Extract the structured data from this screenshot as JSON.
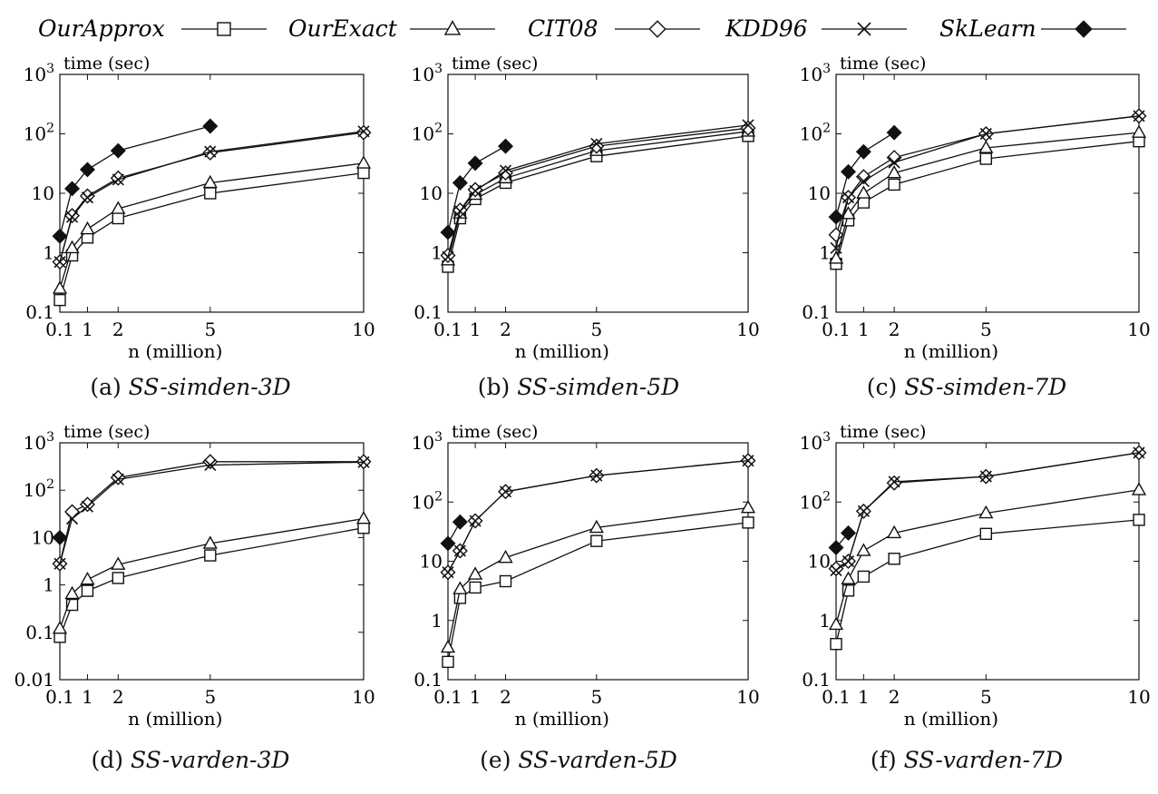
{
  "legend": [
    {
      "name": "OurApprox",
      "marker": "square"
    },
    {
      "name": "OurExact",
      "marker": "triangle"
    },
    {
      "name": "CIT08",
      "marker": "diamond"
    },
    {
      "name": "KDD96",
      "marker": "cross"
    },
    {
      "name": "SkLearn",
      "marker": "filled-diamond"
    }
  ],
  "chart_data": [
    {
      "type": "line",
      "caption_prefix": "(a)",
      "caption_name": "SS-simden-3D",
      "xlabel": "n (million)",
      "ylabel": "time (sec)",
      "xlim": [
        0.1,
        10
      ],
      "ylim": [
        0.1,
        1000
      ],
      "yscale": "log",
      "xticks": [
        "0.1",
        "1",
        "2",
        "5",
        "10"
      ],
      "yticks": [
        "0.1",
        "1",
        "10",
        "10^2",
        "10^3"
      ],
      "series": [
        {
          "name": "OurApprox",
          "x": [
            0.1,
            0.5,
            1,
            2,
            5,
            10
          ],
          "y": [
            0.16,
            0.9,
            1.8,
            3.8,
            10,
            22
          ]
        },
        {
          "name": "OurExact",
          "x": [
            0.1,
            0.5,
            1,
            2,
            5,
            10
          ],
          "y": [
            0.25,
            1.2,
            2.5,
            5.5,
            15,
            32
          ]
        },
        {
          "name": "CIT08",
          "x": [
            0.1,
            0.5,
            1,
            2,
            5,
            10
          ],
          "y": [
            0.7,
            4.2,
            9,
            18,
            48,
            105
          ]
        },
        {
          "name": "KDD96",
          "x": [
            0.1,
            0.5,
            1,
            2,
            5,
            10
          ],
          "y": [
            0.7,
            4,
            8.5,
            17,
            50,
            110
          ]
        },
        {
          "name": "SkLearn",
          "x": [
            0.1,
            0.5,
            1,
            2,
            5
          ],
          "y": [
            1.9,
            12,
            25,
            52,
            135
          ]
        }
      ]
    },
    {
      "type": "line",
      "caption_prefix": "(b)",
      "caption_name": "SS-simden-5D",
      "xlabel": "n (million)",
      "ylabel": "time (sec)",
      "xlim": [
        0.1,
        10
      ],
      "ylim": [
        0.1,
        1000
      ],
      "yscale": "log",
      "xticks": [
        "0.1",
        "1",
        "2",
        "5",
        "10"
      ],
      "yticks": [
        "0.1",
        "1",
        "10",
        "10^2",
        "10^3"
      ],
      "series": [
        {
          "name": "OurApprox",
          "x": [
            0.1,
            0.5,
            1,
            2,
            5,
            10
          ],
          "y": [
            0.58,
            3.8,
            8,
            15,
            42,
            92
          ]
        },
        {
          "name": "OurExact",
          "x": [
            0.1,
            0.5,
            1,
            2,
            5,
            10
          ],
          "y": [
            0.75,
            4.6,
            9.5,
            18,
            52,
            110
          ]
        },
        {
          "name": "CIT08",
          "x": [
            0.1,
            0.5,
            1,
            2,
            5,
            10
          ],
          "y": [
            0.9,
            5.2,
            11.5,
            22,
            62,
            125
          ]
        },
        {
          "name": "KDD96",
          "x": [
            0.1,
            0.5,
            1,
            2,
            5,
            10
          ],
          "y": [
            0.85,
            5,
            11,
            24,
            68,
            140
          ]
        },
        {
          "name": "SkLearn",
          "x": [
            0.1,
            0.5,
            1,
            2
          ],
          "y": [
            2.2,
            15,
            32,
            62
          ]
        }
      ]
    },
    {
      "type": "line",
      "caption_prefix": "(c)",
      "caption_name": "SS-simden-7D",
      "xlabel": "n (million)",
      "ylabel": "time (sec)",
      "xlim": [
        0.1,
        10
      ],
      "ylim": [
        0.1,
        1000
      ],
      "yscale": "log",
      "xticks": [
        "0.1",
        "1",
        "2",
        "5",
        "10"
      ],
      "yticks": [
        "0.1",
        "1",
        "10",
        "10^2",
        "10^3"
      ],
      "series": [
        {
          "name": "OurApprox",
          "x": [
            0.1,
            0.5,
            1,
            2,
            5,
            10
          ],
          "y": [
            0.65,
            3.5,
            7,
            14,
            38,
            75
          ]
        },
        {
          "name": "OurExact",
          "x": [
            0.1,
            0.5,
            1,
            2,
            5,
            10
          ],
          "y": [
            0.8,
            4.5,
            10,
            22,
            58,
            105
          ]
        },
        {
          "name": "CIT08",
          "x": [
            0.1,
            0.5,
            1,
            2,
            5,
            10
          ],
          "y": [
            2,
            8.5,
            19,
            40,
            100,
            200
          ]
        },
        {
          "name": "KDD96",
          "x": [
            0.1,
            0.5,
            1,
            2,
            5,
            10
          ],
          "y": [
            1.2,
            8.5,
            16,
            33,
            100,
            200
          ]
        },
        {
          "name": "SkLearn",
          "x": [
            0.1,
            0.5,
            1,
            2
          ],
          "y": [
            4,
            23,
            50,
            105
          ]
        }
      ]
    },
    {
      "type": "line",
      "caption_prefix": "(d)",
      "caption_name": "SS-varden-3D",
      "xlabel": "n (million)",
      "ylabel": "time (sec)",
      "xlim": [
        0.1,
        10
      ],
      "ylim": [
        0.01,
        1000
      ],
      "yscale": "log",
      "xticks": [
        "0.1",
        "1",
        "2",
        "5",
        "10"
      ],
      "yticks": [
        "0.01",
        "0.1",
        "1",
        "10",
        "10^2",
        "10^3"
      ],
      "series": [
        {
          "name": "OurApprox",
          "x": [
            0.1,
            0.5,
            1,
            2,
            5,
            10
          ],
          "y": [
            0.08,
            0.38,
            0.75,
            1.4,
            4.2,
            16
          ]
        },
        {
          "name": "OurExact",
          "x": [
            0.1,
            0.5,
            1,
            2,
            5,
            10
          ],
          "y": [
            0.12,
            0.65,
            1.3,
            2.7,
            7.5,
            25
          ]
        },
        {
          "name": "CIT08",
          "x": [
            0.1,
            0.5,
            1,
            2,
            5,
            10
          ],
          "y": [
            2.8,
            35,
            50,
            185,
            400,
            400
          ]
        },
        {
          "name": "KDD96",
          "x": [
            0.1,
            0.5,
            1,
            2,
            5,
            10
          ],
          "y": [
            2.8,
            25,
            45,
            170,
            340,
            390
          ]
        },
        {
          "name": "SkLearn",
          "x": [
            0.1
          ],
          "y": [
            10
          ]
        }
      ]
    },
    {
      "type": "line",
      "caption_prefix": "(e)",
      "caption_name": "SS-varden-5D",
      "xlabel": "n (million)",
      "ylabel": "time (sec)",
      "xlim": [
        0.1,
        10
      ],
      "ylim": [
        0.1,
        1000
      ],
      "yscale": "log",
      "xticks": [
        "0.1",
        "1",
        "2",
        "5",
        "10"
      ],
      "yticks": [
        "0.1",
        "1",
        "10",
        "10^2",
        "10^3"
      ],
      "series": [
        {
          "name": "OurApprox",
          "x": [
            0.1,
            0.5,
            1,
            2,
            5,
            10
          ],
          "y": [
            0.2,
            2.4,
            3.6,
            4.6,
            22,
            45
          ]
        },
        {
          "name": "OurExact",
          "x": [
            0.1,
            0.5,
            1,
            2,
            5,
            10
          ],
          "y": [
            0.35,
            3.4,
            6,
            11.5,
            37,
            80
          ]
        },
        {
          "name": "CIT08",
          "x": [
            0.1,
            0.5,
            1,
            2,
            5,
            10
          ],
          "y": [
            6.5,
            15,
            48,
            150,
            280,
            500
          ]
        },
        {
          "name": "KDD96",
          "x": [
            0.1,
            0.5,
            1,
            2,
            5,
            10
          ],
          "y": [
            6.5,
            15,
            48,
            150,
            280,
            500
          ]
        },
        {
          "name": "SkLearn",
          "x": [
            0.1,
            0.5
          ],
          "y": [
            20,
            46
          ]
        }
      ]
    },
    {
      "type": "line",
      "caption_prefix": "(f)",
      "caption_name": "SS-varden-7D",
      "xlabel": "n (million)",
      "ylabel": "time (sec)",
      "xlim": [
        0.1,
        10
      ],
      "ylim": [
        0.1,
        1000
      ],
      "yscale": "log",
      "xticks": [
        "0.1",
        "1",
        "2",
        "5",
        "10"
      ],
      "yticks": [
        "0.1",
        "1",
        "10",
        "10^2",
        "10^3"
      ],
      "series": [
        {
          "name": "OurApprox",
          "x": [
            0.1,
            0.5,
            1,
            2,
            5,
            10
          ],
          "y": [
            0.4,
            3.2,
            5.5,
            11,
            29,
            50
          ]
        },
        {
          "name": "OurExact",
          "x": [
            0.1,
            0.5,
            1,
            2,
            5,
            10
          ],
          "y": [
            0.85,
            5,
            15,
            30,
            65,
            160
          ]
        },
        {
          "name": "CIT08",
          "x": [
            0.1,
            0.5,
            1,
            2,
            5,
            10
          ],
          "y": [
            7.5,
            10,
            70,
            210,
            270,
            680
          ]
        },
        {
          "name": "KDD96",
          "x": [
            0.1,
            0.5,
            1,
            2,
            5,
            10
          ],
          "y": [
            7,
            10,
            70,
            220,
            270,
            680
          ]
        },
        {
          "name": "SkLearn",
          "x": [
            0.1,
            0.5
          ],
          "y": [
            17,
            30
          ]
        }
      ]
    }
  ]
}
